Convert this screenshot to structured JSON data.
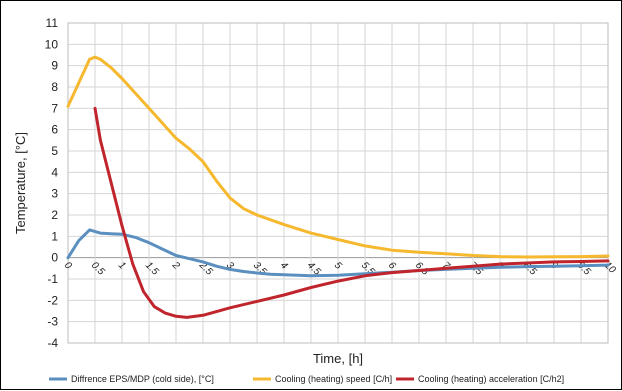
{
  "chart_data": {
    "type": "line",
    "xlabel": "Time, [h]",
    "ylabel": "Temperature, [°C]",
    "xlim": [
      0,
      10
    ],
    "ylim": [
      -4,
      11
    ],
    "grid": true,
    "legend_position": "bottom",
    "x_ticks": [
      "0",
      "0.5",
      "1",
      "1.5",
      "2",
      "2.5",
      "3",
      "3.5",
      "4",
      "4.5",
      "5",
      "5.5",
      "6",
      "6.5",
      "7",
      "7.5",
      "8",
      "8.5",
      "9",
      "9.5",
      "10"
    ],
    "y_ticks": [
      "-4",
      "-3",
      "-2",
      "-1",
      "0",
      "1",
      "2",
      "3",
      "4",
      "5",
      "6",
      "7",
      "8",
      "9",
      "10",
      "11"
    ],
    "series": [
      {
        "name": "Diffrence EPS/MDP (cold side), [°C]",
        "color": "#5b8fbf",
        "x": [
          0,
          0.2,
          0.4,
          0.6,
          0.8,
          1,
          1.25,
          1.5,
          1.75,
          2,
          2.25,
          2.5,
          2.75,
          3,
          3.25,
          3.5,
          3.75,
          4,
          4.5,
          5,
          5.5,
          6,
          6.5,
          7,
          7.5,
          8,
          8.5,
          9,
          9.5,
          10
        ],
        "y": [
          0,
          0.8,
          1.3,
          1.15,
          1.12,
          1.1,
          0.95,
          0.7,
          0.4,
          0.1,
          -0.05,
          -0.2,
          -0.4,
          -0.55,
          -0.65,
          -0.72,
          -0.78,
          -0.8,
          -0.85,
          -0.82,
          -0.75,
          -0.68,
          -0.6,
          -0.55,
          -0.5,
          -0.45,
          -0.42,
          -0.4,
          -0.38,
          -0.35
        ]
      },
      {
        "name": "Cooling (heating) speed [C/h]",
        "color": "#f5b82e",
        "x": [
          0,
          0.2,
          0.4,
          0.5,
          0.6,
          0.8,
          1,
          1.25,
          1.5,
          1.75,
          2,
          2.25,
          2.5,
          2.75,
          3,
          3.25,
          3.5,
          4,
          4.5,
          5,
          5.5,
          6,
          6.5,
          7,
          7.5,
          8,
          8.5,
          9,
          9.5,
          10
        ],
        "y": [
          7.1,
          8.2,
          9.3,
          9.4,
          9.3,
          8.9,
          8.4,
          7.7,
          7.0,
          6.3,
          5.6,
          5.1,
          4.5,
          3.6,
          2.8,
          2.3,
          2.0,
          1.55,
          1.15,
          0.85,
          0.55,
          0.35,
          0.25,
          0.18,
          0.1,
          0.05,
          0.03,
          0.04,
          0.05,
          0.08
        ]
      },
      {
        "name": "Cooling (heating) acceleration [C/h2]",
        "color": "#c0242c",
        "x": [
          0.5,
          0.6,
          0.8,
          1,
          1.2,
          1.4,
          1.6,
          1.8,
          2,
          2.2,
          2.5,
          3,
          3.5,
          4,
          4.5,
          5,
          5.5,
          6,
          6.5,
          7,
          7.5,
          8,
          8.5,
          9,
          9.5,
          10
        ],
        "y": [
          7.0,
          5.5,
          3.5,
          1.5,
          -0.3,
          -1.6,
          -2.3,
          -2.6,
          -2.75,
          -2.8,
          -2.7,
          -2.35,
          -2.05,
          -1.75,
          -1.4,
          -1.1,
          -0.85,
          -0.7,
          -0.6,
          -0.5,
          -0.4,
          -0.3,
          -0.25,
          -0.2,
          -0.18,
          -0.15
        ]
      }
    ]
  }
}
